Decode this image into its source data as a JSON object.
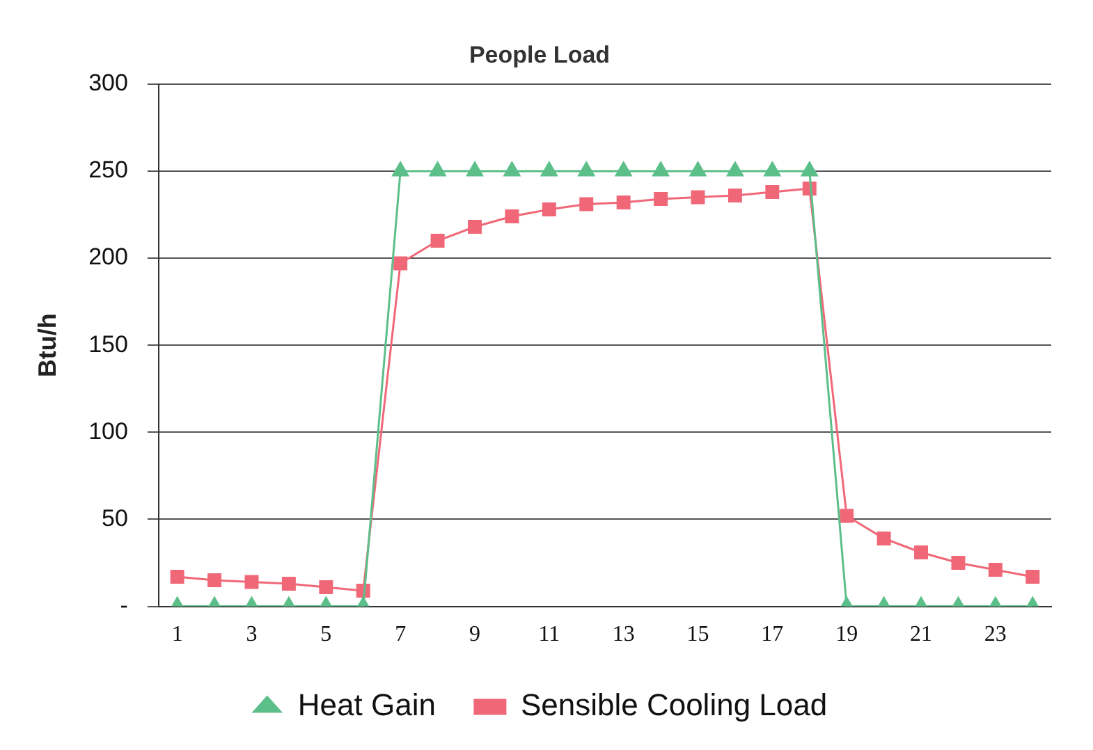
{
  "chart_data": {
    "type": "line",
    "title": "People Load",
    "ylabel": "Btu/h",
    "x": [
      1,
      2,
      3,
      4,
      5,
      6,
      7,
      8,
      9,
      10,
      11,
      12,
      13,
      14,
      15,
      16,
      17,
      18,
      19,
      20,
      21,
      22,
      23,
      24
    ],
    "series": [
      {
        "name": "Heat Gain",
        "color": "#5cbf8a",
        "marker": "triangle",
        "values": [
          0,
          0,
          0,
          0,
          0,
          0,
          250,
          250,
          250,
          250,
          250,
          250,
          250,
          250,
          250,
          250,
          250,
          250,
          0,
          0,
          0,
          0,
          0,
          0
        ]
      },
      {
        "name": "Sensible Cooling Load",
        "color": "#f06878",
        "marker": "square",
        "values": [
          17,
          15,
          14,
          13,
          11,
          9,
          197,
          210,
          218,
          224,
          228,
          231,
          232,
          234,
          235,
          236,
          238,
          240,
          52,
          39,
          31,
          25,
          21,
          17
        ]
      }
    ],
    "xlim": [
      0.5,
      24.5
    ],
    "xticks": [
      1,
      3,
      5,
      7,
      9,
      11,
      13,
      15,
      17,
      19,
      21,
      23
    ],
    "ylim": [
      0,
      300
    ],
    "yticks": [
      {
        "value": 0,
        "label": "-"
      },
      50,
      100,
      150,
      200,
      250,
      300
    ],
    "grid": "y",
    "legend": "bottom"
  }
}
